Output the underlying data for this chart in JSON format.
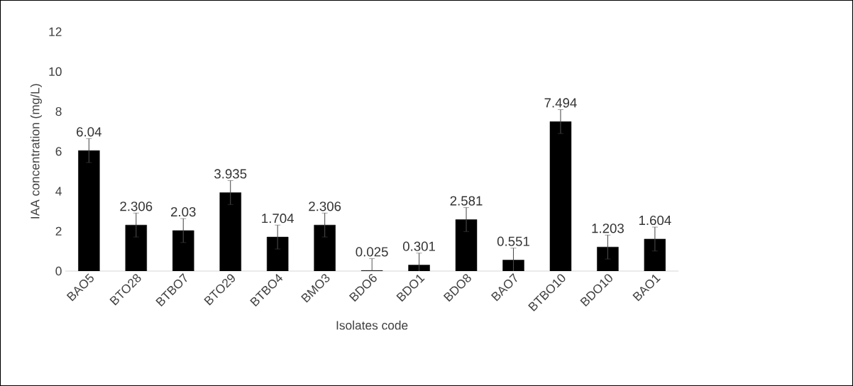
{
  "chart_data": {
    "type": "bar",
    "xlabel": "Isolates code",
    "ylabel": "IAA concentration (mg/L)",
    "categories": [
      "BAO5",
      "BTO28",
      "BTBO7",
      "BTO29",
      "BTBO4",
      "BMO3",
      "BDO6",
      "BDO1",
      "BDO8",
      "BAO7",
      "BTBO10",
      "BDO10",
      "BAO1"
    ],
    "values": [
      6.04,
      2.306,
      2.03,
      3.935,
      1.704,
      2.306,
      0.025,
      0.301,
      2.581,
      0.551,
      7.494,
      1.203,
      1.604
    ],
    "errors": [
      0.6,
      0.6,
      0.6,
      0.6,
      0.6,
      0.6,
      0.6,
      0.6,
      0.6,
      0.6,
      0.6,
      0.6,
      0.6
    ],
    "color": "#000000",
    "data_labels": true,
    "grid": false,
    "ylim": [
      0,
      12
    ],
    "yticks": [
      0,
      2,
      4,
      6,
      8,
      10,
      12
    ]
  }
}
